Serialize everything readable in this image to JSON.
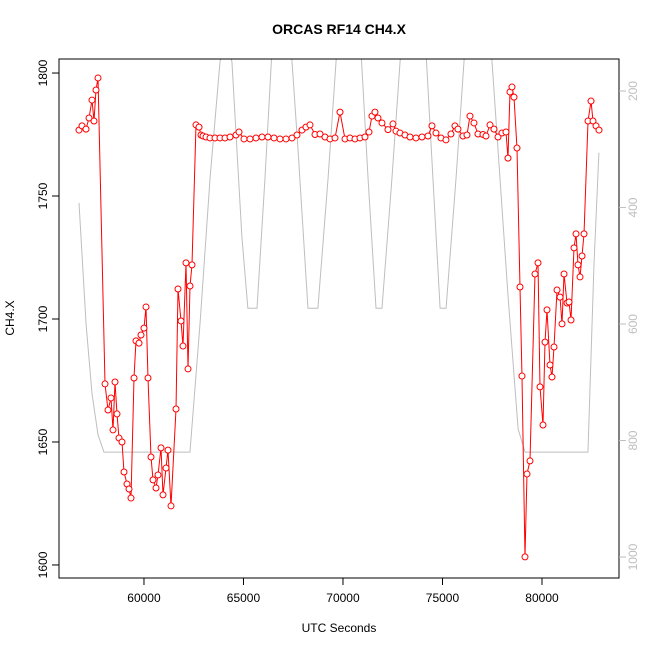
{
  "chart_data": {
    "type": "line",
    "title": "ORCAS RF14 CH4.X",
    "xlabel": "UTC Seconds",
    "ylabel": "CH4.X",
    "xlim": [
      55730,
      83870
    ],
    "ylim": [
      1594.7,
      1805.7
    ],
    "y2lim": [
      1036,
      145
    ],
    "xticks": [
      60000,
      65000,
      70000,
      75000,
      80000
    ],
    "yticks": [
      1600,
      1650,
      1700,
      1750,
      1800
    ],
    "y2ticks": [
      200,
      400,
      600,
      800,
      1000
    ],
    "series": [
      {
        "color": "#bebebe",
        "axis": "y2",
        "markers": false,
        "x": [
          56735,
          57090,
          57390,
          57690,
          57990,
          62310,
          62815,
          63320,
          63820,
          64120,
          64420,
          64920,
          65220,
          65680,
          66080,
          66480,
          67340,
          67740,
          68240,
          68740,
          69250,
          69750,
          70855,
          71260,
          71660,
          71960,
          72460,
          72970,
          74120,
          74520,
          74880,
          75180,
          75680,
          76180,
          77390,
          77790,
          78290,
          78800,
          79150,
          82310,
          82610,
          82860
        ],
        "values": [
          392,
          600,
          720,
          790,
          820,
          820,
          600,
          350,
          150,
          100,
          150,
          450,
          573,
          573,
          350,
          100,
          100,
          300,
          573,
          573,
          350,
          100,
          100,
          350,
          573,
          573,
          350,
          100,
          100,
          350,
          573,
          573,
          350,
          100,
          100,
          300,
          550,
          780,
          820,
          820,
          500,
          306
        ]
      },
      {
        "color": "#ff0000",
        "markers": true,
        "x": [
          56735,
          56886,
          57087,
          57238,
          57388,
          57489,
          57590,
          57690,
          58042,
          58192,
          58343,
          58444,
          58544,
          58645,
          58745,
          58896,
          58996,
          59147,
          59248,
          59348,
          59499,
          59599,
          59750,
          59851,
          60001,
          60102,
          60202,
          60353,
          60454,
          60604,
          60705,
          60856,
          60956,
          61107,
          61207,
          61358,
          61610,
          61710,
          61861,
          61961,
          62112,
          62213,
          62313,
          62413,
          62614,
          62765,
          62866,
          62966,
          63117,
          63318,
          63569,
          63820,
          64071,
          64323,
          64624,
          64775,
          65026,
          65328,
          65629,
          65931,
          66232,
          66534,
          66835,
          67137,
          67438,
          67689,
          67940,
          68141,
          68342,
          68594,
          68845,
          69096,
          69347,
          69599,
          69850,
          70101,
          70352,
          70603,
          70855,
          71106,
          71307,
          71457,
          71608,
          71759,
          71960,
          72261,
          72512,
          72663,
          72864,
          73115,
          73367,
          73668,
          73970,
          74271,
          74472,
          74673,
          74924,
          75175,
          75426,
          75627,
          75778,
          76029,
          76230,
          76381,
          76582,
          76783,
          77034,
          77186,
          77387,
          77588,
          77789,
          77990,
          78191,
          78291,
          78392,
          78492,
          78593,
          78744,
          78895,
          78995,
          79146,
          79247,
          79397,
          79649,
          79800,
          79900,
          80051,
          80152,
          80252,
          80403,
          80503,
          80604,
          80755,
          80906,
          81006,
          81107,
          81257,
          81358,
          81459,
          81609,
          81710,
          81810,
          81911,
          82011,
          82112,
          82313,
          82464,
          82564,
          82715,
          82866
        ],
        "values": [
          1776.8,
          1778.5,
          1777.2,
          1781.7,
          1789.0,
          1780.5,
          1793.1,
          1798.0,
          1673.6,
          1663.0,
          1667.9,
          1654.9,
          1674.4,
          1661.4,
          1651.6,
          1650.0,
          1637.8,
          1632.9,
          1630.9,
          1627.2,
          1676.0,
          1691.1,
          1690.2,
          1693.5,
          1696.3,
          1704.9,
          1676.0,
          1643.9,
          1634.6,
          1631.3,
          1636.6,
          1647.6,
          1628.5,
          1639.4,
          1646.7,
          1624.0,
          1663.4,
          1712.2,
          1699.2,
          1689.0,
          1722.8,
          1679.7,
          1713.4,
          1722.0,
          1778.9,
          1778.0,
          1774.8,
          1774.4,
          1774.0,
          1773.6,
          1773.6,
          1773.6,
          1773.6,
          1774.0,
          1774.8,
          1776.0,
          1773.2,
          1773.2,
          1773.6,
          1774.0,
          1774.0,
          1773.6,
          1773.2,
          1773.2,
          1773.6,
          1774.8,
          1776.8,
          1778.0,
          1778.9,
          1775.0,
          1775.2,
          1774.0,
          1773.2,
          1773.6,
          1784.1,
          1773.2,
          1773.6,
          1773.2,
          1773.6,
          1774.0,
          1776.0,
          1782.5,
          1784.1,
          1781.7,
          1779.7,
          1777.0,
          1779.3,
          1776.4,
          1775.6,
          1774.8,
          1774.0,
          1773.6,
          1774.0,
          1774.4,
          1778.5,
          1775.6,
          1773.6,
          1772.8,
          1775.2,
          1778.5,
          1777.2,
          1774.4,
          1774.8,
          1782.5,
          1779.7,
          1775.2,
          1775.0,
          1774.4,
          1778.9,
          1777.2,
          1774.0,
          1775.6,
          1776.0,
          1765.4,
          1792.3,
          1794.3,
          1790.2,
          1769.5,
          1713.0,
          1676.8,
          1603.3,
          1637.0,
          1642.3,
          1718.3,
          1722.8,
          1672.4,
          1656.9,
          1690.6,
          1703.7,
          1681.3,
          1676.4,
          1688.6,
          1711.8,
          1708.9,
          1698.0,
          1718.3,
          1706.5,
          1706.9,
          1699.6,
          1728.9,
          1734.6,
          1722.0,
          1717.1,
          1725.6,
          1734.6,
          1780.5,
          1788.6,
          1780.5,
          1778.5,
          1776.8
        ]
      }
    ]
  }
}
